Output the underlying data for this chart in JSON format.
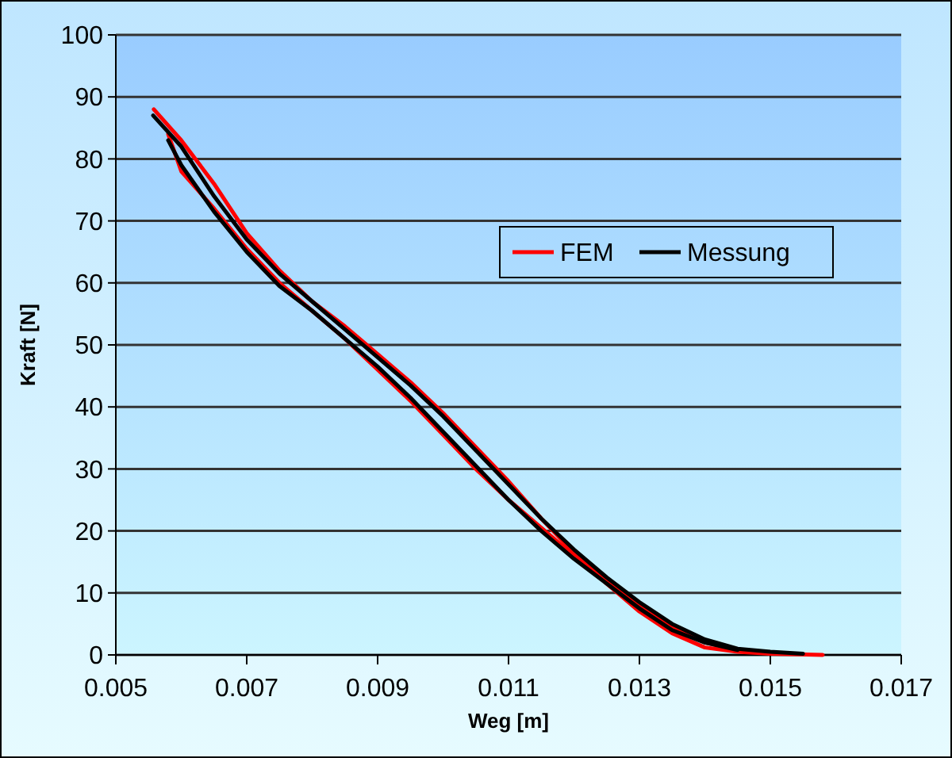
{
  "chart_data": {
    "type": "line",
    "xlabel": "Weg [m]",
    "ylabel": "Kraft [N]",
    "xlim": [
      0.005,
      0.017
    ],
    "xticks": [
      0.005,
      0.007,
      0.009,
      0.011,
      0.013,
      0.015,
      0.017
    ],
    "ylim": [
      0,
      100
    ],
    "yticks": [
      0,
      10,
      20,
      30,
      40,
      50,
      60,
      70,
      80,
      90,
      100
    ],
    "grid": "y",
    "legend": "right",
    "marker": "none",
    "line_style": "solid",
    "series": [
      {
        "name": "FEM",
        "color": "#ff0000",
        "x": [
          0.00558,
          0.006,
          0.0065,
          0.007,
          0.0075,
          0.008,
          0.0085,
          0.009,
          0.0095,
          0.01,
          0.0105,
          0.011,
          0.0115,
          0.012,
          0.0125,
          0.013,
          0.0135,
          0.014,
          0.0145,
          0.015,
          0.0158
        ],
        "values": [
          88,
          83,
          76,
          68,
          62,
          57,
          53,
          48.5,
          44,
          39,
          33.5,
          28,
          22,
          16.5,
          11.5,
          7,
          3.5,
          1.2,
          0.5,
          0.2,
          0
        ]
      },
      {
        "color": "#ff0000",
        "x": [
          0.0058,
          0.006,
          0.0065,
          0.007,
          0.0075,
          0.008,
          0.0085,
          0.009,
          0.0095,
          0.01,
          0.0105,
          0.011,
          0.0115,
          0.012,
          0.0125,
          0.013,
          0.0135,
          0.014,
          0.0145,
          0.015
        ],
        "values": [
          84,
          78,
          72,
          65.5,
          60,
          55.5,
          51,
          46,
          41,
          35.5,
          30,
          25,
          20.5,
          16,
          12,
          8,
          4.5,
          2,
          0.8,
          0.3
        ]
      },
      {
        "name": "Messung",
        "color": "#000000",
        "x": [
          0.00557,
          0.006,
          0.0065,
          0.007,
          0.0075,
          0.008,
          0.0085,
          0.009,
          0.0095,
          0.01,
          0.0105,
          0.011,
          0.0115,
          0.012,
          0.0125,
          0.013,
          0.0135,
          0.014,
          0.0145,
          0.015,
          0.0155
        ],
        "values": [
          87,
          82,
          74,
          67,
          61.5,
          57,
          52.5,
          48,
          43.5,
          38.5,
          33,
          27.5,
          22,
          17,
          12.5,
          8.5,
          5,
          2.5,
          1,
          0.5,
          0.2
        ]
      },
      {
        "color": "#000000",
        "x": [
          0.0058,
          0.006,
          0.0065,
          0.007,
          0.0075,
          0.008,
          0.0085,
          0.009,
          0.0095,
          0.01,
          0.0105,
          0.011,
          0.0115,
          0.012,
          0.0125,
          0.013,
          0.0135,
          0.014,
          0.0145
        ],
        "values": [
          83,
          79,
          71.5,
          65,
          59.5,
          55.5,
          51,
          46.5,
          41.5,
          36,
          30.5,
          25,
          20,
          15.5,
          11.5,
          7.5,
          4,
          2,
          0.8
        ]
      }
    ]
  }
}
